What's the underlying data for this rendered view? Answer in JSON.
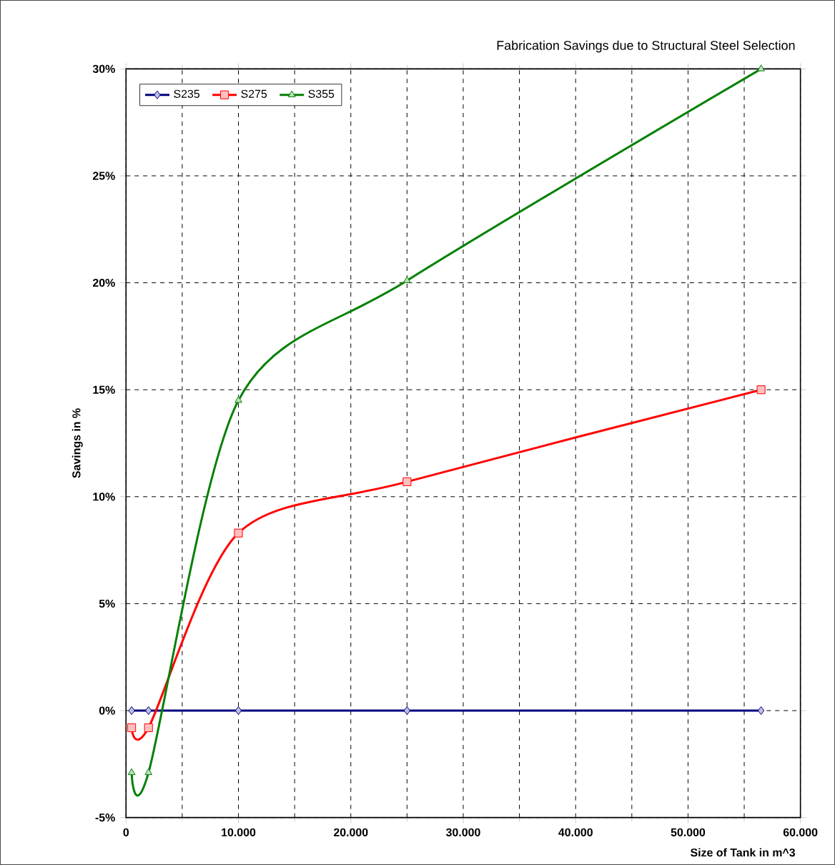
{
  "chart_data": {
    "type": "line",
    "title": "Fabrication Savings due to Structural Steel Selection",
    "xlabel": "Size of Tank in m^3",
    "ylabel": "Savings in %",
    "series": [
      {
        "name": "S235",
        "color": "#000080",
        "marker": "diamond",
        "x": [
          500,
          2000,
          10000,
          25000,
          56500
        ],
        "values": [
          0,
          0,
          0,
          0,
          0
        ]
      },
      {
        "name": "S275",
        "color": "#ff0000",
        "marker": "square",
        "x": [
          500,
          2000,
          10000,
          25000,
          56500
        ],
        "values": [
          -0.8,
          -0.8,
          8.3,
          10.7,
          15
        ]
      },
      {
        "name": "S355",
        "color": "#008000",
        "marker": "triangle",
        "x": [
          500,
          2000,
          10000,
          25000,
          56500
        ],
        "values": [
          -2.9,
          -2.9,
          14.5,
          20.1,
          30
        ]
      }
    ],
    "xlim": [
      0,
      60000
    ],
    "xticks": [
      {
        "value": 0,
        "label": "0"
      },
      {
        "value": 10000,
        "label": "10.000"
      },
      {
        "value": 20000,
        "label": "20.000"
      },
      {
        "value": 30000,
        "label": "30.000"
      },
      {
        "value": 40000,
        "label": "40.000"
      },
      {
        "value": 50000,
        "label": "50.000"
      },
      {
        "value": 60000,
        "label": "60.000"
      }
    ],
    "ylim": [
      -5,
      30
    ],
    "yticks": [
      {
        "value": -5,
        "label": "-5%"
      },
      {
        "value": 0,
        "label": "0%"
      },
      {
        "value": 5,
        "label": "5%"
      },
      {
        "value": 10,
        "label": "10%"
      },
      {
        "value": 15,
        "label": "15%"
      },
      {
        "value": 20,
        "label": "20%"
      },
      {
        "value": 25,
        "label": "25%"
      },
      {
        "value": 30,
        "label": "30%"
      }
    ],
    "grid": true,
    "legend": "top left",
    "line_style": "solid"
  }
}
